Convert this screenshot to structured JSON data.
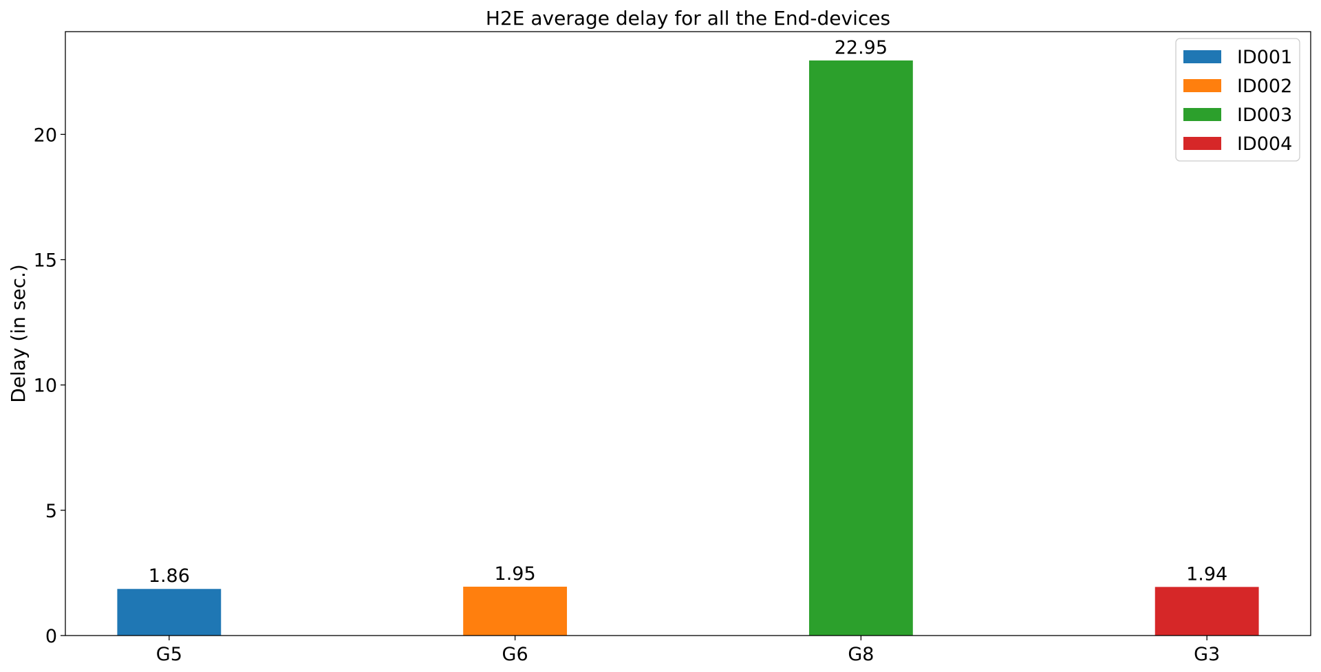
{
  "chart_data": {
    "type": "bar",
    "title": "H2E average delay for all the End-devices",
    "xlabel": "",
    "ylabel": "Delay (in sec.)",
    "categories": [
      "G5",
      "G6",
      "G8",
      "G3"
    ],
    "series": [
      {
        "name": "ID001",
        "category": "G5",
        "value": 1.86,
        "label": "1.86",
        "color": "#1f77b4"
      },
      {
        "name": "ID002",
        "category": "G6",
        "value": 1.95,
        "label": "1.95",
        "color": "#ff7f0e"
      },
      {
        "name": "ID003",
        "category": "G8",
        "value": 22.95,
        "label": "22.95",
        "color": "#2ca02c"
      },
      {
        "name": "ID004",
        "category": "G3",
        "value": 1.94,
        "label": "1.94",
        "color": "#d62728"
      }
    ],
    "ylim": [
      0,
      24.1
    ],
    "yticks": [
      0,
      5,
      10,
      15,
      20
    ],
    "ytick_labels": [
      "0",
      "5",
      "10",
      "15",
      "20"
    ],
    "grid": false,
    "legend_position": "top-right"
  }
}
